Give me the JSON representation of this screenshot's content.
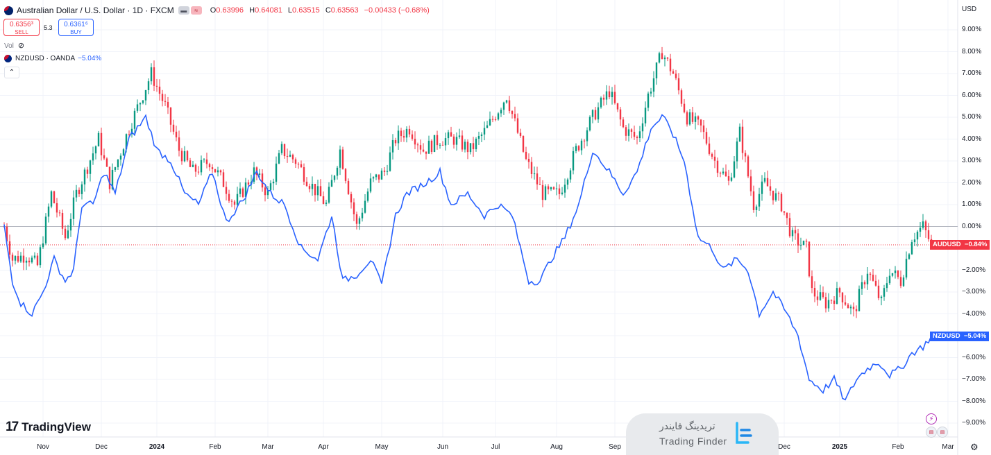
{
  "header": {
    "title": "Australian Dollar / U.S. Dollar · 1D · FXCM",
    "ohlc": {
      "open_label": "O",
      "open": "0.63996",
      "high_label": "H",
      "high": "0.64081",
      "low_label": "L",
      "low": "0.63515",
      "close_label": "C",
      "close": "0.63563",
      "change": "−0.00433 (−0.68%)"
    }
  },
  "trade": {
    "sell_price": "0.6356³",
    "sell_label": "SELL",
    "buy_price": "0.6361⁶",
    "buy_label": "BUY",
    "spread": "5.3"
  },
  "volume": {
    "label": "Vol"
  },
  "compare": {
    "symbol": "NZDUSD · OANDA",
    "change": "−5.04%"
  },
  "axis": {
    "currency": "USD"
  },
  "watermark": {
    "logo": "TradingView",
    "fa_text": "تریدینگ فایندر",
    "en_text": "Trading Finder"
  },
  "colors": {
    "up": "#089981",
    "down": "#f23645",
    "compare": "#2962ff",
    "grid": "#f0f3fa"
  },
  "chart_data": {
    "type": "line",
    "title": "Australian Dollar / U.S. Dollar · 1D · FXCM",
    "y_unit": "percent change",
    "ylim": [
      -9.5,
      9.6
    ],
    "yticks": [
      "9.00%",
      "8.00%",
      "7.00%",
      "6.00%",
      "5.00%",
      "4.00%",
      "3.00%",
      "2.00%",
      "1.00%",
      "0.00%",
      "−1.00%",
      "−2.00%",
      "−3.00%",
      "−4.00%",
      "−5.00%",
      "−6.00%",
      "−7.00%",
      "−8.00%",
      "−9.00%"
    ],
    "ytick_values": [
      9,
      8,
      7,
      6,
      5,
      4,
      3,
      2,
      1,
      0,
      -1,
      -2,
      -3,
      -4,
      -5,
      -6,
      -7,
      -8,
      -9
    ],
    "xlim": [
      0,
      339
    ],
    "xticks": [
      {
        "label": "Nov",
        "t": 14,
        "bold": false
      },
      {
        "label": "Dec",
        "t": 35,
        "bold": false
      },
      {
        "label": "2024",
        "t": 55,
        "bold": true
      },
      {
        "label": "Feb",
        "t": 76,
        "bold": false
      },
      {
        "label": "Mar",
        "t": 95,
        "bold": false
      },
      {
        "label": "Apr",
        "t": 115,
        "bold": false
      },
      {
        "label": "May",
        "t": 136,
        "bold": false
      },
      {
        "label": "Jun",
        "t": 158,
        "bold": false
      },
      {
        "label": "Jul",
        "t": 177,
        "bold": false
      },
      {
        "label": "Aug",
        "t": 199,
        "bold": false
      },
      {
        "label": "Sep",
        "t": 220,
        "bold": false
      },
      {
        "label": "Dec",
        "t": 281,
        "bold": false
      },
      {
        "label": "2025",
        "t": 301,
        "bold": true
      },
      {
        "label": "Feb",
        "t": 322,
        "bold": false
      },
      {
        "label": "Mar",
        "t": 340,
        "bold": false
      }
    ],
    "series": [
      {
        "name": "AUDUSD",
        "kind": "candlestick",
        "last_label": "AUDUSD",
        "last_value_label": "−0.84%",
        "last_value": -0.84,
        "key_points": [
          [
            0,
            0
          ],
          [
            3,
            -1.5
          ],
          [
            8,
            -1.3
          ],
          [
            12,
            -1.8
          ],
          [
            17,
            1.5
          ],
          [
            22,
            -0.5
          ],
          [
            26,
            1.5
          ],
          [
            34,
            4
          ],
          [
            38,
            2
          ],
          [
            45,
            4.5
          ],
          [
            53,
            7
          ],
          [
            58,
            5.5
          ],
          [
            63,
            3.5
          ],
          [
            68,
            2.5
          ],
          [
            74,
            3
          ],
          [
            79,
            2
          ],
          [
            83,
            1
          ],
          [
            90,
            2.5
          ],
          [
            95,
            1.5
          ],
          [
            100,
            3.5
          ],
          [
            105,
            3
          ],
          [
            110,
            2
          ],
          [
            116,
            1
          ],
          [
            121,
            3.5
          ],
          [
            127,
            0
          ],
          [
            132,
            2
          ],
          [
            137,
            2.5
          ],
          [
            141,
            4
          ],
          [
            146,
            4.5
          ],
          [
            151,
            3.5
          ],
          [
            157,
            4
          ],
          [
            162,
            4
          ],
          [
            168,
            3.5
          ],
          [
            174,
            4.5
          ],
          [
            181,
            6
          ],
          [
            188,
            3
          ],
          [
            194,
            1.5
          ],
          [
            200,
            1.5
          ],
          [
            206,
            3.5
          ],
          [
            212,
            5
          ],
          [
            218,
            6.2
          ],
          [
            223,
            4.5
          ],
          [
            228,
            4
          ],
          [
            232,
            6
          ],
          [
            237,
            8
          ],
          [
            241,
            7
          ],
          [
            246,
            5
          ],
          [
            251,
            4.5
          ],
          [
            256,
            3
          ],
          [
            261,
            2
          ],
          [
            265,
            4.3
          ],
          [
            270,
            1
          ],
          [
            274,
            2
          ],
          [
            280,
            1
          ],
          [
            284,
            -0.5
          ],
          [
            289,
            -1
          ],
          [
            291,
            -3
          ],
          [
            296,
            -3.5
          ],
          [
            301,
            -3
          ],
          [
            306,
            -4
          ],
          [
            311,
            -2
          ],
          [
            316,
            -3.5
          ],
          [
            319,
            -2
          ],
          [
            323,
            -2.5
          ],
          [
            327,
            -0.5
          ],
          [
            331,
            0
          ],
          [
            334,
            -0.84
          ]
        ]
      },
      {
        "name": "NZDUSD · OANDA",
        "kind": "line",
        "last_label": "NZDUSD",
        "last_value_label": "−5.04%",
        "last_value": -5.04,
        "key_points": [
          [
            0,
            0
          ],
          [
            3,
            -2.5
          ],
          [
            6,
            -3.5
          ],
          [
            10,
            -4
          ],
          [
            14,
            -3
          ],
          [
            18,
            -1.5
          ],
          [
            22,
            -2.5
          ],
          [
            25,
            -2
          ],
          [
            28,
            1
          ],
          [
            32,
            1
          ],
          [
            36,
            2.5
          ],
          [
            40,
            1.5
          ],
          [
            45,
            4
          ],
          [
            51,
            5
          ],
          [
            55,
            3.5
          ],
          [
            60,
            3
          ],
          [
            65,
            1.5
          ],
          [
            70,
            1
          ],
          [
            75,
            2.5
          ],
          [
            80,
            0.2
          ],
          [
            86,
            1.2
          ],
          [
            91,
            2.5
          ],
          [
            96,
            1.5
          ],
          [
            101,
            1
          ],
          [
            107,
            -1
          ],
          [
            113,
            -1.5
          ],
          [
            118,
            0.5
          ],
          [
            122,
            -2.5
          ],
          [
            127,
            -2.2
          ],
          [
            132,
            -1.5
          ],
          [
            136,
            -2.7
          ],
          [
            141,
            0.5
          ],
          [
            145,
            1.5
          ],
          [
            152,
            2
          ],
          [
            157,
            2.5
          ],
          [
            161,
            1
          ],
          [
            167,
            1.5
          ],
          [
            173,
            0.5
          ],
          [
            178,
            1
          ],
          [
            183,
            0.5
          ],
          [
            189,
            -2.5
          ],
          [
            193,
            -2.5
          ],
          [
            197,
            -1.5
          ],
          [
            202,
            -0.5
          ],
          [
            207,
            1
          ],
          [
            212,
            3.5
          ],
          [
            218,
            2.5
          ],
          [
            223,
            1.5
          ],
          [
            228,
            2.5
          ],
          [
            233,
            4.5
          ],
          [
            237,
            5
          ],
          [
            240,
            4.5
          ],
          [
            245,
            3
          ],
          [
            250,
            -0.5
          ],
          [
            255,
            -1
          ],
          [
            259,
            -2
          ],
          [
            264,
            -1.5
          ],
          [
            268,
            -2
          ],
          [
            272,
            -4
          ],
          [
            277,
            -3
          ],
          [
            282,
            -4
          ],
          [
            286,
            -5
          ],
          [
            290,
            -7
          ],
          [
            295,
            -7.5
          ],
          [
            299,
            -7
          ],
          [
            303,
            -8
          ],
          [
            307,
            -7
          ],
          [
            311,
            -6.5
          ],
          [
            315,
            -6.2
          ],
          [
            319,
            -6.8
          ],
          [
            323,
            -6.5
          ],
          [
            327,
            -5.8
          ],
          [
            331,
            -5.5
          ],
          [
            334,
            -5.04
          ]
        ]
      }
    ]
  }
}
